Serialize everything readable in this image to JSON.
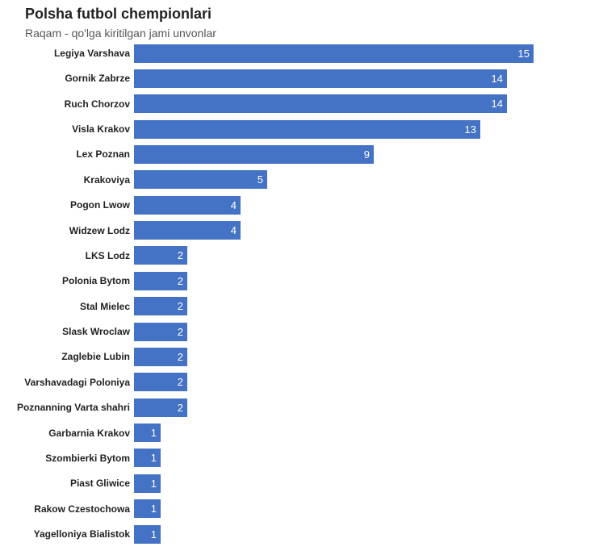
{
  "chart_data": {
    "type": "bar",
    "orientation": "horizontal",
    "title": "Polsha futbol chempionlari",
    "subtitle": "Raqam - qo'lga kiritilgan jami unvonlar",
    "color": "#4472c4",
    "categories": [
      "Legiya Varshava",
      "Gornik Zabrze",
      "Ruch Chorzov",
      "Visla Krakov",
      "Lex Poznan",
      "Krakoviya",
      "Pogon Lwow",
      "Widzew Lodz",
      "LKS Lodz",
      "Polonia Bytom",
      "Stal Mielec",
      "Slask Wroclaw",
      "Zaglebie Lubin",
      "Varshavadagi Poloniya",
      "Poznanning Varta shahri",
      "Garbarnia Krakov",
      "Szombierki Bytom",
      "Piast Gliwice",
      "Rakow Czestochowa",
      "Yagelloniya Bialistok"
    ],
    "values": [
      15,
      14,
      14,
      13,
      9,
      5,
      4,
      4,
      2,
      2,
      2,
      2,
      2,
      2,
      2,
      1,
      1,
      1,
      1,
      1
    ]
  }
}
